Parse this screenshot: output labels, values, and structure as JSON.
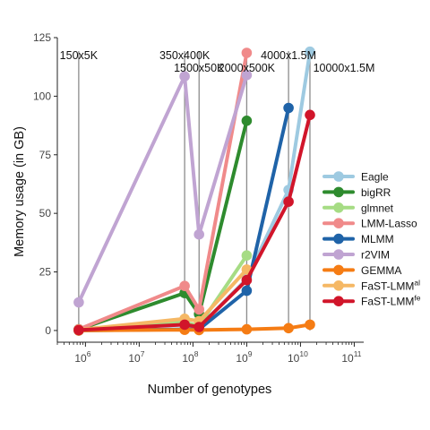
{
  "chart_data": {
    "type": "line",
    "xlabel": "Number of genotypes",
    "ylabel": "Memory usage (in GB)",
    "x_scale": "log10",
    "xlim": [
      300000,
      150000000000
    ],
    "ylim": [
      -5,
      125
    ],
    "x_ticks": [
      {
        "value": 1000000,
        "base": "10",
        "exp": "6"
      },
      {
        "value": 10000000,
        "base": "10",
        "exp": "7"
      },
      {
        "value": 100000000,
        "base": "10",
        "exp": "8"
      },
      {
        "value": 1000000000,
        "base": "10",
        "exp": "9"
      },
      {
        "value": 10000000000,
        "base": "10",
        "exp": "10"
      },
      {
        "value": 100000000000,
        "base": "10",
        "exp": "11"
      }
    ],
    "y_ticks": [
      {
        "value": 0,
        "label": "0"
      },
      {
        "value": 25,
        "label": "25"
      },
      {
        "value": 50,
        "label": "50"
      },
      {
        "value": 75,
        "label": "75"
      },
      {
        "value": 100,
        "label": "100"
      },
      {
        "value": 125,
        "label": "125"
      }
    ],
    "vlines": [
      {
        "x": 750000,
        "label": "150x5K",
        "row": 1,
        "anchor": "middle"
      },
      {
        "x": 70000000,
        "label": "350x400K",
        "row": 1,
        "anchor": "middle"
      },
      {
        "x": 130000000,
        "label": "1500x50K",
        "row": 2,
        "anchor": "middle"
      },
      {
        "x": 1000000000,
        "label": "2000x500K",
        "row": 2,
        "anchor": "middle"
      },
      {
        "x": 6000000000,
        "label": "4000x1.5M",
        "row": 1,
        "anchor": "middle"
      },
      {
        "x": 15000000000,
        "label": "10000x1.5M",
        "row": 2,
        "anchor": "end"
      }
    ],
    "x": [
      750000,
      70000000,
      130000000,
      1000000000,
      6000000000,
      15000000000
    ],
    "series": [
      {
        "name": "Eagle",
        "sup": "",
        "color": "#9ecae1",
        "values": [
          0.5,
          2.5,
          1.5,
          22,
          60,
          119
        ]
      },
      {
        "name": "bigRR",
        "sup": "",
        "color": "#2e8b2e",
        "values": [
          0.5,
          16,
          7,
          89.5,
          null,
          null
        ]
      },
      {
        "name": "glmnet",
        "sup": "",
        "color": "#a6dc84",
        "values": [
          0.3,
          3.5,
          2,
          32,
          null,
          null
        ]
      },
      {
        "name": "LMM-Lasso",
        "sup": "",
        "color": "#f08a8a",
        "values": [
          0.5,
          19,
          9,
          118.5,
          null,
          null
        ]
      },
      {
        "name": "MLMM",
        "sup": "",
        "color": "#1f63a8",
        "values": [
          0,
          0.5,
          0.5,
          17,
          95,
          null
        ]
      },
      {
        "name": "r2VIM",
        "sup": "",
        "color": "#c0a4d2",
        "values": [
          12,
          108.5,
          41,
          109,
          null,
          null
        ]
      },
      {
        "name": "GEMMA",
        "sup": "",
        "color": "#f57c14",
        "values": [
          0,
          0.3,
          0.2,
          0.5,
          1,
          2.5
        ]
      },
      {
        "name": "FaST-LMM",
        "sup": "al",
        "color": "#f5b865",
        "values": [
          0.3,
          5,
          4,
          26,
          null,
          null
        ]
      },
      {
        "name": "FaST-LMM",
        "sup": "fe",
        "color": "#d1152a",
        "values": [
          0.2,
          2.5,
          1.5,
          21.5,
          55,
          92
        ]
      }
    ]
  }
}
